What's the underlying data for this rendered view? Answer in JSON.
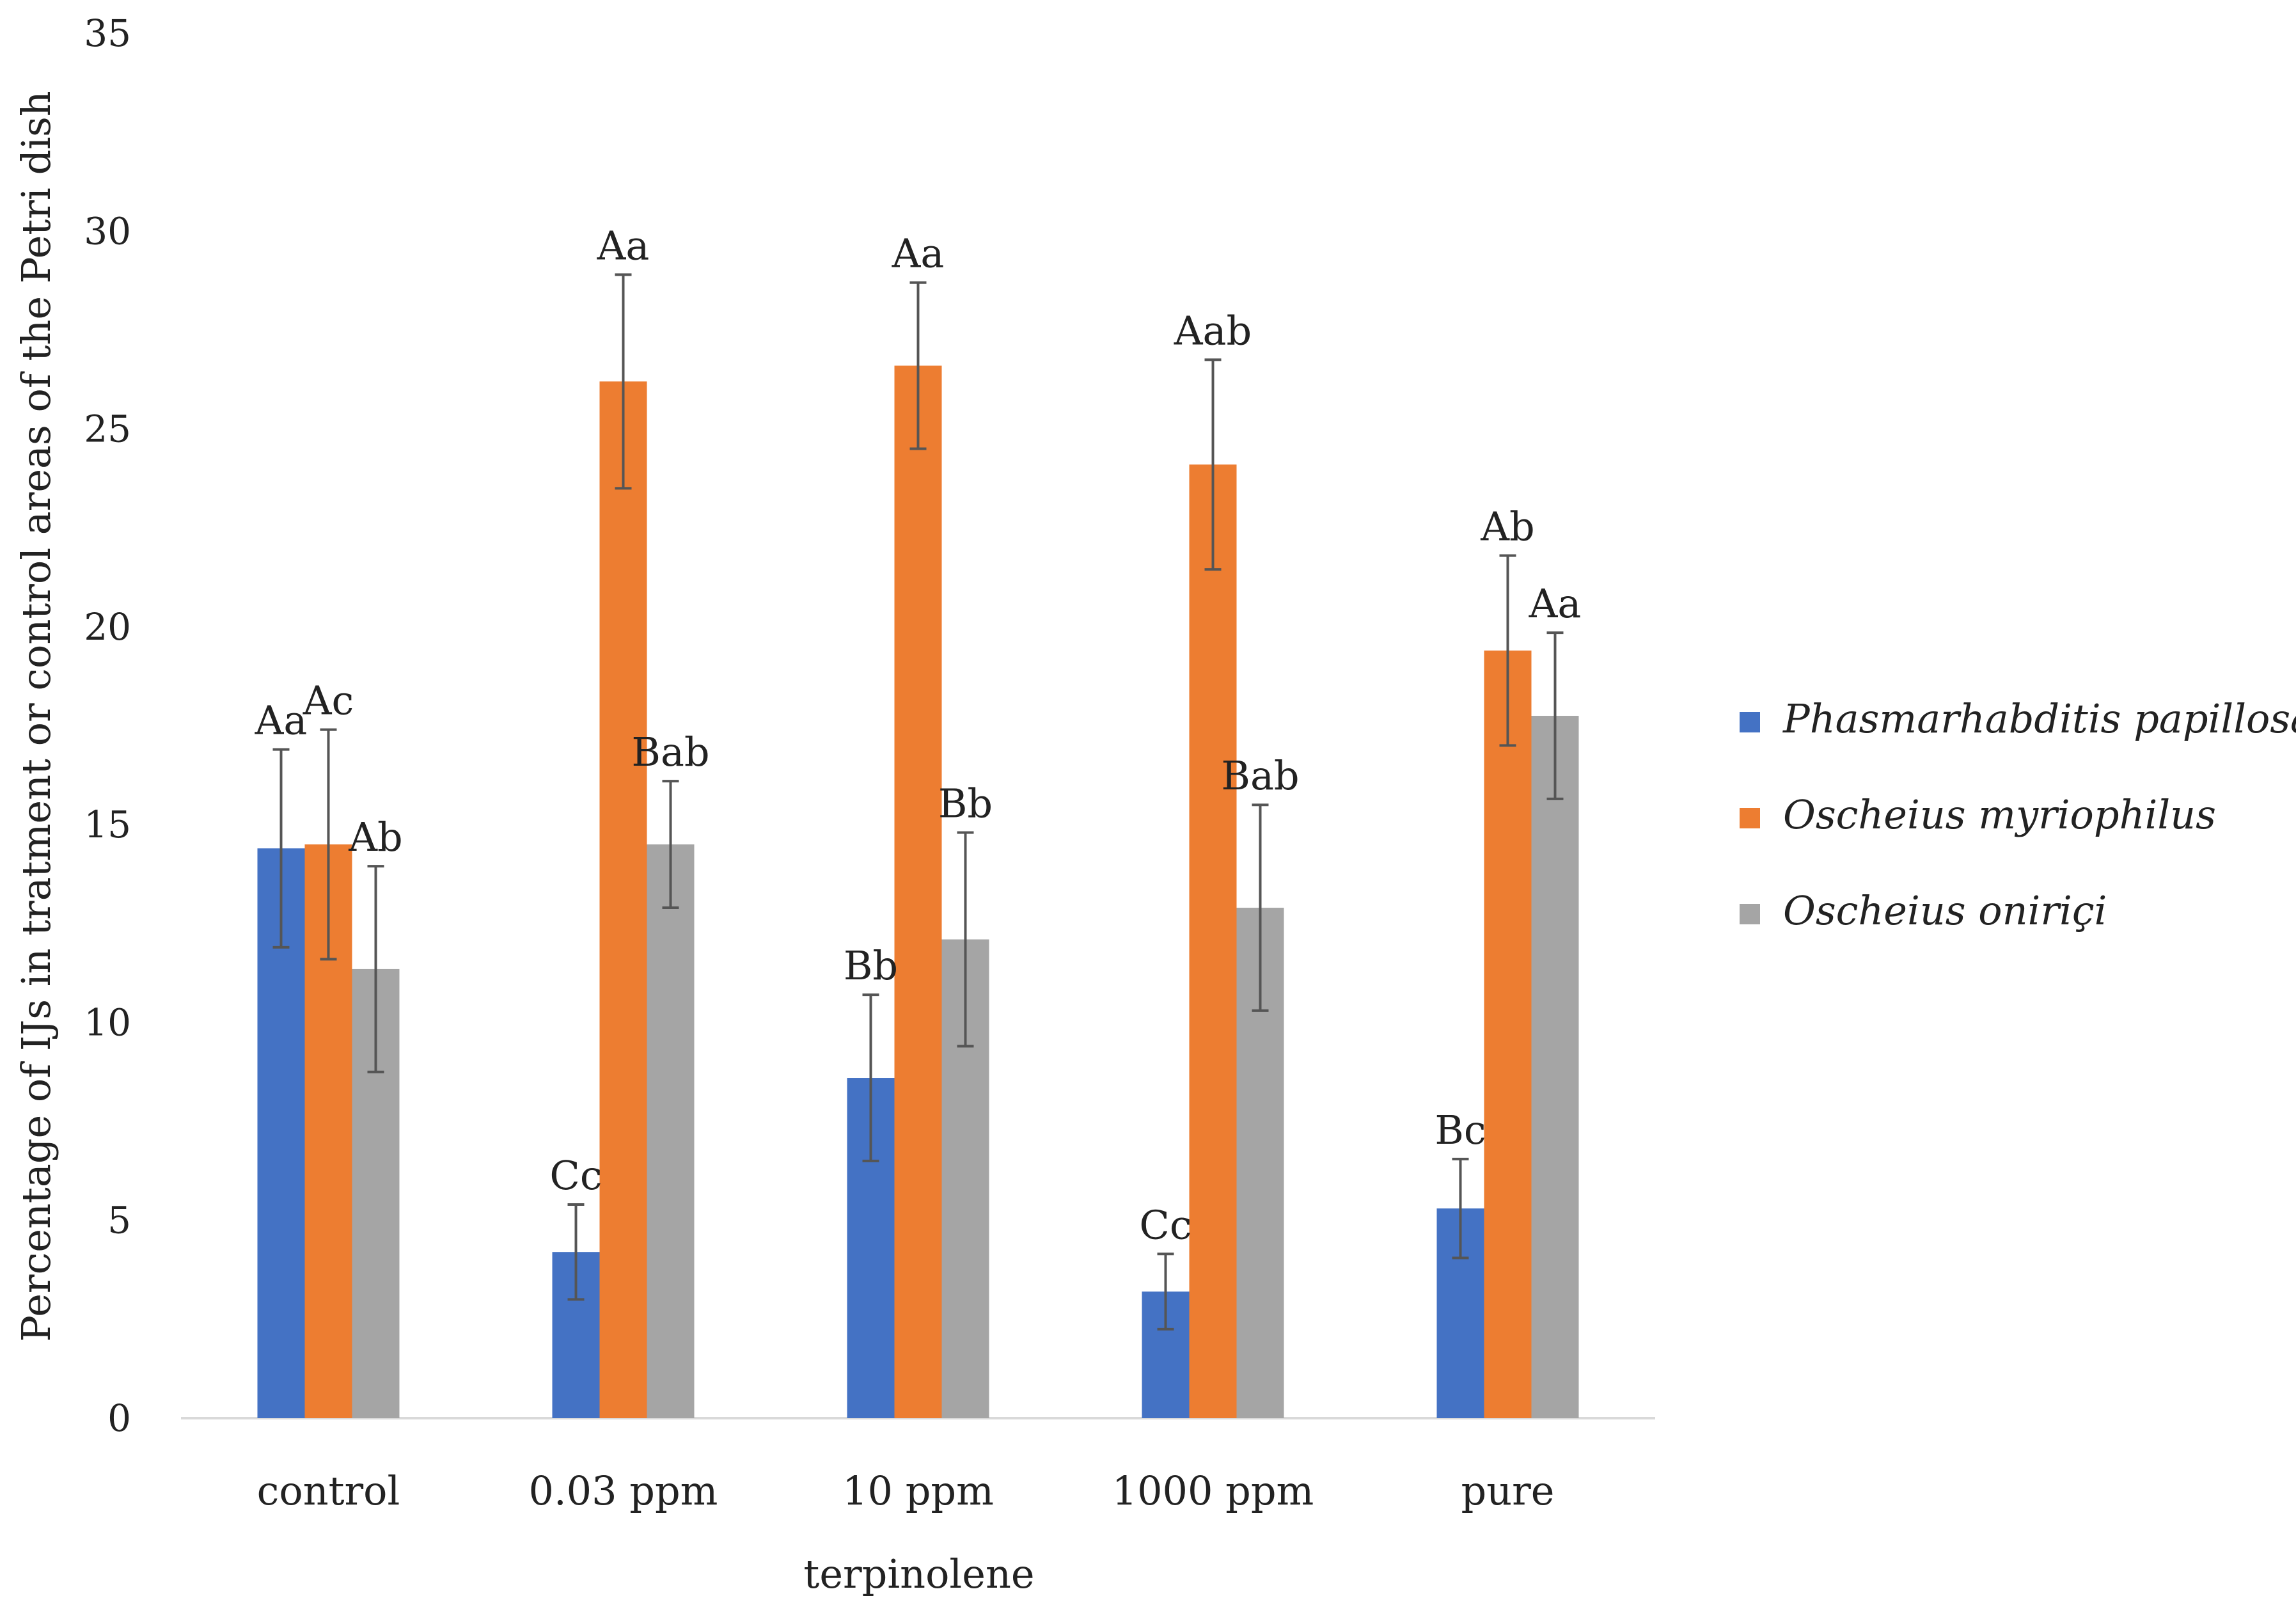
{
  "chart_data": {
    "type": "bar",
    "title": "",
    "xlabel": "terpinolene",
    "ylabel": "Percentage of IJs in tratment or control areas of the Petri dish",
    "ylim": [
      0,
      35
    ],
    "yticks": [
      0,
      5,
      10,
      15,
      20,
      25,
      30,
      35
    ],
    "grid": false,
    "legend_position": "right",
    "categories": [
      "control",
      "0.03 ppm",
      "10 ppm",
      "1000 ppm",
      "pure"
    ],
    "series": [
      {
        "name": "Phasmarhabditis papillosa",
        "color": "#4472C4",
        "values": [
          14.4,
          4.2,
          8.6,
          3.2,
          5.3
        ],
        "errors": [
          2.5,
          1.2,
          2.1,
          0.95,
          1.25
        ],
        "labels": [
          "Aa",
          "Cc",
          "Bb",
          "Cc",
          "Bc"
        ]
      },
      {
        "name": "Oscheius myriophilus",
        "color": "#ED7D31",
        "values": [
          14.5,
          26.2,
          26.6,
          24.1,
          19.4
        ],
        "errors": [
          2.9,
          2.7,
          2.1,
          2.65,
          2.4
        ],
        "labels": [
          "Ac",
          "Aa",
          "Aa",
          "Aab",
          "Ab"
        ]
      },
      {
        "name": "Oscheius oniriçi",
        "color": "#A5A5A5",
        "values": [
          11.35,
          14.5,
          12.1,
          12.9,
          17.75
        ],
        "errors": [
          2.6,
          1.6,
          2.7,
          2.6,
          2.1
        ],
        "labels": [
          "Ab",
          "Bab",
          "Bb",
          "Bab",
          "Aa"
        ]
      }
    ]
  }
}
